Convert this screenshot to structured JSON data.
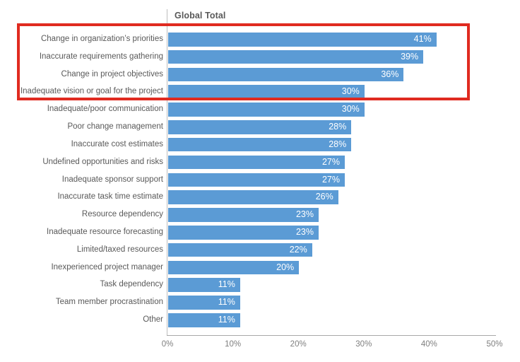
{
  "chart_data": {
    "type": "bar",
    "orientation": "horizontal",
    "title": "Global Total",
    "categories": [
      "Change in organization’s priorities",
      "Inaccurate requirements gathering",
      "Change in project objectives",
      "Inadequate vision or goal for the project",
      "Inadequate/poor communication",
      "Poor change management",
      "Inaccurate cost estimates",
      "Undefined opportunities and risks",
      "Inadequate sponsor support",
      "Inaccurate task time estimate",
      "Resource dependency",
      "Inadequate resource forecasting",
      "Limited/taxed resources",
      "Inexperienced project manager",
      "Task dependency",
      "Team member procrastination",
      "Other"
    ],
    "values": [
      41,
      39,
      36,
      30,
      30,
      28,
      28,
      27,
      27,
      26,
      23,
      23,
      22,
      20,
      11,
      11,
      11
    ],
    "value_labels": [
      "41%",
      "39%",
      "36%",
      "30%",
      "30%",
      "28%",
      "28%",
      "27%",
      "27%",
      "26%",
      "23%",
      "23%",
      "22%",
      "20%",
      "11%",
      "11%",
      "11%"
    ],
    "xlabel": "",
    "ylabel": "",
    "xlim": [
      0,
      50
    ],
    "x_ticks": [
      {
        "value": 0,
        "label": "0%"
      },
      {
        "value": 10,
        "label": "10%"
      },
      {
        "value": 20,
        "label": "20%"
      },
      {
        "value": 30,
        "label": "30%"
      },
      {
        "value": 40,
        "label": "40%"
      },
      {
        "value": 50,
        "label": "50%"
      }
    ],
    "grid": false,
    "legend": "none",
    "colors": {
      "bar": "#5b9bd5",
      "value_label": "#ffffff",
      "category_label": "#595959",
      "tick_label": "#7f7f7f",
      "axis_line": "#b3b3b3",
      "highlight": "#e02b20"
    },
    "highlight": {
      "shape": "rectangle",
      "rows": [
        0,
        1,
        2,
        3
      ],
      "color": "#e02b20"
    }
  }
}
